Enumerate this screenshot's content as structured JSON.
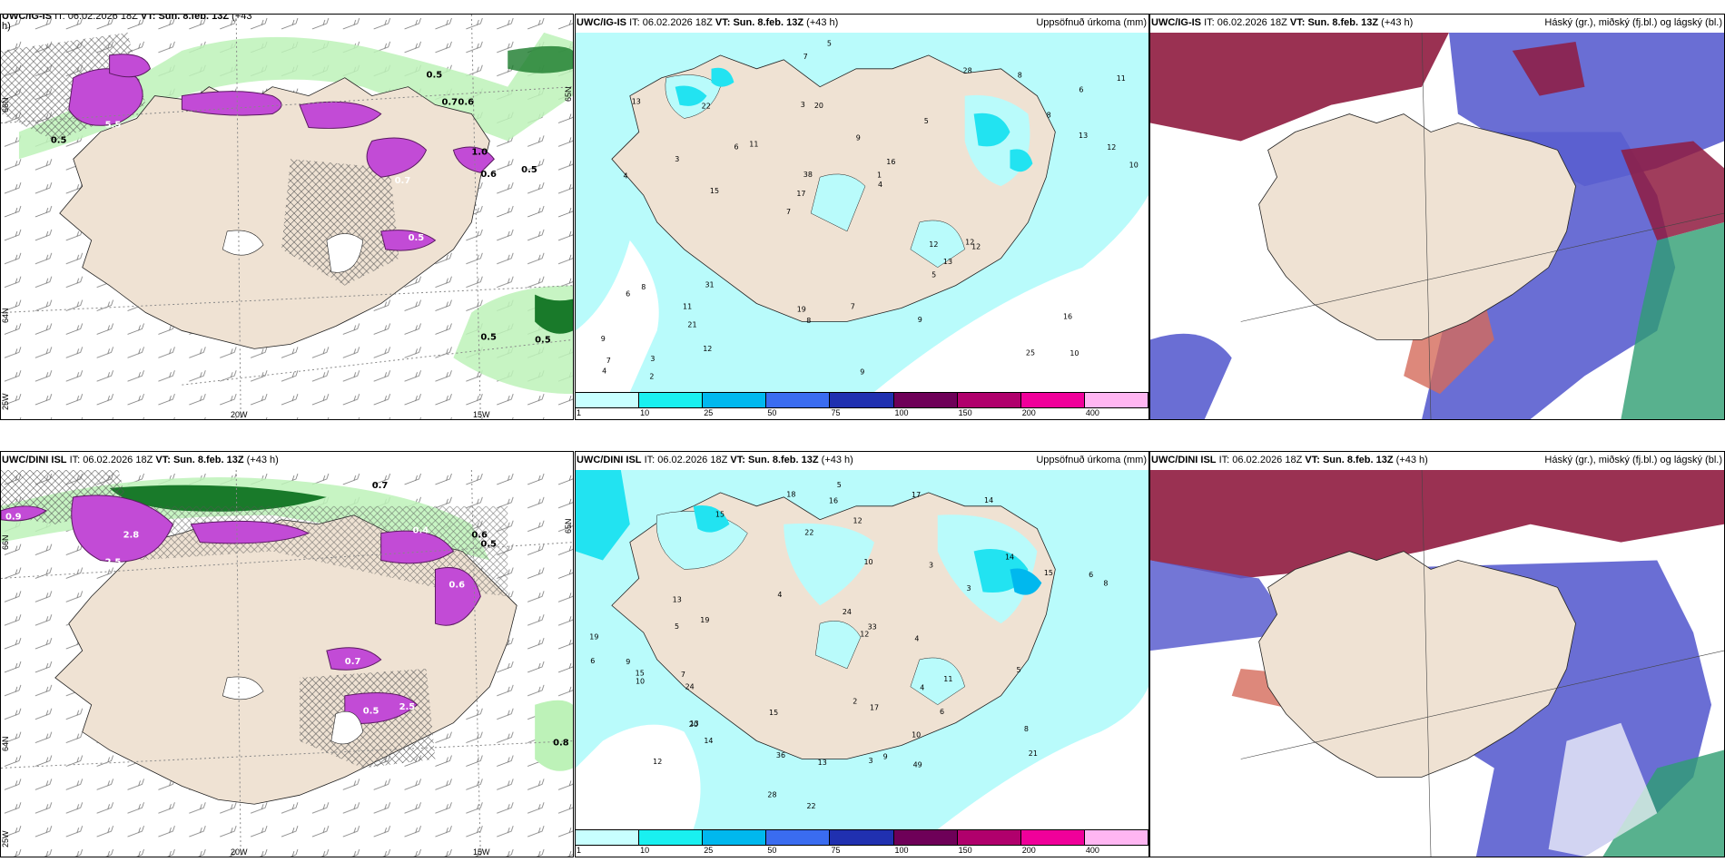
{
  "colors": {
    "land": "#efe2d3",
    "sea_light": "#b9fbfb",
    "precip_cyan": "#22e3f1",
    "snow_purple": "#c24bd6",
    "cloud_high": "#8f1b3f",
    "cloud_mid": "#5a5ecf",
    "cloud_low": "#2e9e72",
    "green_light": "#bdf2b8",
    "green_dark": "#197a2a"
  },
  "colorbar": {
    "ticks": [
      "1",
      "10",
      "25",
      "50",
      "75",
      "100",
      "150",
      "200",
      "400"
    ],
    "colors": [
      "#c8ffff",
      "#19f0f0",
      "#00b8ee",
      "#3a6cf0",
      "#2030b0",
      "#6e0058",
      "#b0006c",
      "#f0009a",
      "#ffb6f2"
    ]
  },
  "rows": [
    {
      "panels": [
        {
          "title_model": "UWC/IG-IS",
          "title_it_label": "IT:",
          "title_it": "06.02.2026 18Z",
          "title_vt_label": "VT:",
          "title_vt": "Sun. 8.feb. 13Z",
          "title_lead": "(+43",
          "title_cont": "h)",
          "axis": {
            "lon1": "20W",
            "lon2": "15W",
            "lat1": "66N",
            "lat2": "64N",
            "lat3": "25W",
            "lat4": "65N"
          },
          "labels": [
            "0.5",
            "0.7",
            "0.6",
            "0.6",
            "1.0",
            "0.5",
            "5.5",
            "0.5",
            "0.7",
            "0.5",
            "0.5",
            "0.5"
          ]
        },
        {
          "title_model": "UWC/IG-IS",
          "title_it_label": "IT:",
          "title_it": "06.02.2026 18Z",
          "title_vt_label": "VT:",
          "title_vt": "Sun. 8.feb. 13Z",
          "title_lead": "(+43 h)",
          "right_label": "Uppsöfnuð úrkoma (mm)",
          "numbers": [
            "10",
            "4",
            "6",
            "7",
            "5",
            "3",
            "3",
            "9",
            "8",
            "11",
            "9",
            "21",
            "20",
            "16",
            "12",
            "13",
            "7",
            "10",
            "12",
            "13",
            "17",
            "19",
            "38",
            "22",
            "28",
            "31",
            "25",
            "16",
            "12",
            "9",
            "6",
            "3",
            "5",
            "12",
            "12",
            "1",
            "7",
            "8",
            "4",
            "6",
            "8",
            "11",
            "13",
            "9",
            "11",
            "2",
            "4",
            "7",
            "8",
            "5",
            "15"
          ]
        },
        {
          "title_model": "UWC/IG-IS",
          "title_it_label": "IT:",
          "title_it": "06.02.2026 18Z",
          "title_vt_label": "VT:",
          "title_vt": "Sun. 8.feb. 13Z",
          "title_lead": "(+43 h)",
          "right_label": "Háský (gr.), miðský (fj.bl.) og lágský (bl.)"
        }
      ]
    },
    {
      "panels": [
        {
          "title_model": "UWC/DINI ISL",
          "title_it_label": "IT:",
          "title_it": "06.02.2026 18Z",
          "title_vt_label": "VT:",
          "title_vt": "Sun. 8.feb. 13Z",
          "title_lead": "(+43 h)",
          "axis": {
            "lon1": "20W",
            "lon2": "15W",
            "lat1": "66N",
            "lat2": "64N",
            "lat3": "25W",
            "lat4": "65N"
          },
          "labels": [
            "0.9",
            "0.7",
            "2.5",
            "2.8",
            "0.5",
            "0.6",
            "0.6",
            "0.8",
            "0.4",
            "0.5",
            "0.7",
            "2.5"
          ]
        },
        {
          "title_model": "UWC/DINI ISL",
          "title_it_label": "IT:",
          "title_it": "06.02.2026 18Z",
          "title_vt_label": "VT:",
          "title_vt": "Sun. 8.feb. 13Z",
          "title_lead": "(+43 h)",
          "right_label": "Uppsöfnuð úrkoma (mm)",
          "numbers": [
            "12",
            "14",
            "15",
            "14",
            "17",
            "19",
            "24",
            "13",
            "15",
            "3",
            "9",
            "5",
            "6",
            "12",
            "22",
            "18",
            "21",
            "19",
            "20",
            "28",
            "49",
            "16",
            "22",
            "33",
            "24",
            "36",
            "15",
            "17",
            "10",
            "11",
            "13",
            "14",
            "9",
            "2",
            "8",
            "10",
            "6",
            "4",
            "3",
            "5",
            "8",
            "12",
            "13",
            "7",
            "6",
            "5",
            "4",
            "3",
            "15",
            "10",
            "4"
          ]
        },
        {
          "title_model": "UWC/DINI ISL",
          "title_it_label": "IT:",
          "title_it": "06.02.2026 18Z",
          "title_vt_label": "VT:",
          "title_vt": "Sun. 8.feb. 13Z",
          "title_lead": "(+43 h)",
          "right_label": "Háský (gr.), miðský (fj.bl.) og lágský (bl.)"
        }
      ]
    }
  ]
}
